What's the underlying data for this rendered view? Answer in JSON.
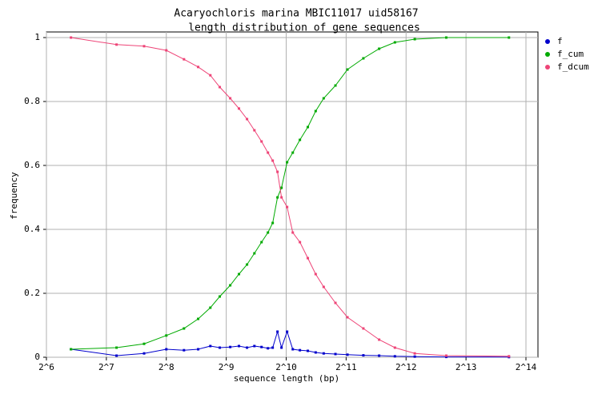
{
  "chart_data": {
    "type": "line",
    "title": "Acaryochloris marina MBIC11017 uid58167",
    "subtitle": "length distribution of gene sequences",
    "x_label": "sequence length (bp)",
    "y_label": "frequency",
    "log_x": true,
    "grid": true,
    "legend": "upper right",
    "xlim": [
      64,
      16384
    ],
    "ylim": [
      0,
      1
    ],
    "xticks": [
      {
        "value": 64,
        "label": "2^6"
      },
      {
        "value": 128,
        "label": "2^7"
      },
      {
        "value": 256,
        "label": "2^8"
      },
      {
        "value": 512,
        "label": "2^9"
      },
      {
        "value": 1024,
        "label": "2^10"
      },
      {
        "value": 2048,
        "label": "2^11"
      },
      {
        "value": 4096,
        "label": "2^12"
      },
      {
        "value": 8192,
        "label": "2^13"
      },
      {
        "value": 16384,
        "label": "2^14"
      }
    ],
    "yticks": [
      0,
      0.2,
      0.4,
      0.6,
      0.8,
      1
    ],
    "x": [
      85,
      144,
      198,
      256,
      314,
      370,
      426,
      475,
      536,
      593,
      651,
      709,
      770,
      829,
      876,
      926,
      970,
      1035,
      1105,
      1200,
      1315,
      1440,
      1580,
      1810,
      2080,
      2500,
      3000,
      3600,
      4530,
      6520,
      13460
    ],
    "series": [
      {
        "name": "f",
        "color": "#0000cc",
        "values": [
          0.025,
          0.005,
          0.012,
          0.025,
          0.022,
          0.025,
          0.035,
          0.03,
          0.032,
          0.035,
          0.03,
          0.035,
          0.032,
          0.028,
          0.03,
          0.08,
          0.03,
          0.08,
          0.025,
          0.022,
          0.02,
          0.015,
          0.012,
          0.01,
          0.008,
          0.006,
          0.005,
          0.003,
          0.002,
          0.001,
          0.0005
        ]
      },
      {
        "name": "f_cum",
        "color": "#00aa00",
        "values": [
          0.025,
          0.03,
          0.042,
          0.068,
          0.09,
          0.12,
          0.155,
          0.19,
          0.225,
          0.26,
          0.29,
          0.325,
          0.36,
          0.39,
          0.42,
          0.5,
          0.53,
          0.61,
          0.64,
          0.68,
          0.72,
          0.77,
          0.81,
          0.85,
          0.9,
          0.935,
          0.965,
          0.985,
          0.995,
          1,
          1
        ]
      },
      {
        "name": "f_dcum",
        "color": "#ee4477",
        "values": [
          1,
          0.978,
          0.973,
          0.96,
          0.932,
          0.908,
          0.882,
          0.845,
          0.81,
          0.778,
          0.745,
          0.71,
          0.675,
          0.64,
          0.615,
          0.58,
          0.5,
          0.47,
          0.39,
          0.36,
          0.31,
          0.26,
          0.22,
          0.17,
          0.125,
          0.09,
          0.055,
          0.03,
          0.012,
          0.005,
          0.003
        ]
      }
    ]
  }
}
